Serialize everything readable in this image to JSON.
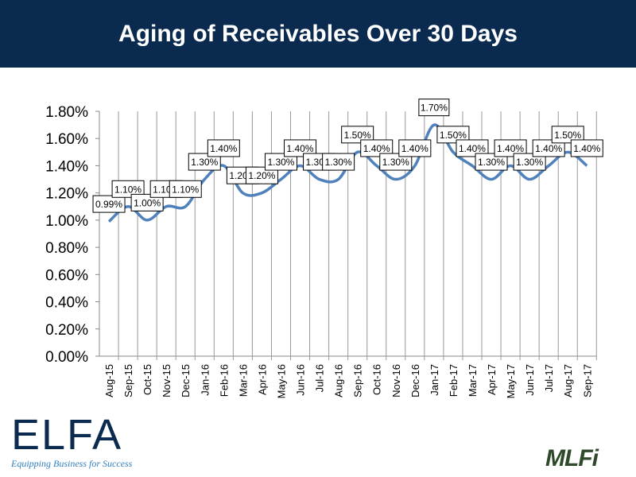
{
  "header": {
    "title": "Aging of Receivables Over 30 Days"
  },
  "logos": {
    "elfa": "ELFA",
    "elfa_tagline": "Equipping Business for Success",
    "mlfi": "MLFi"
  },
  "chart_data": {
    "type": "line",
    "title": "Aging of Receivables Over 30 Days",
    "xlabel": "",
    "ylabel": "",
    "ylim": [
      0,
      1.8
    ],
    "yticks": [
      "0.00%",
      "0.20%",
      "0.40%",
      "0.60%",
      "0.80%",
      "1.00%",
      "1.20%",
      "1.40%",
      "1.60%",
      "1.80%"
    ],
    "categories": [
      "Aug-15",
      "Sep-15",
      "Oct-15",
      "Nov-15",
      "Dec-15",
      "Jan-16",
      "Feb-16",
      "Mar-16",
      "Apr-16",
      "May-16",
      "Jun-16",
      "Jul-16",
      "Aug-16",
      "Sep-16",
      "Oct-16",
      "Nov-16",
      "Dec-16",
      "Jan-17",
      "Feb-17",
      "Mar-17",
      "Apr-17",
      "May-17",
      "Jun-17",
      "Jul-17",
      "Aug-17",
      "Sep-17"
    ],
    "values": [
      0.99,
      1.1,
      1.0,
      1.1,
      1.1,
      1.3,
      1.4,
      1.2,
      1.2,
      1.3,
      1.4,
      1.3,
      1.3,
      1.5,
      1.4,
      1.3,
      1.4,
      1.7,
      1.5,
      1.4,
      1.3,
      1.4,
      1.3,
      1.4,
      1.5,
      1.4
    ],
    "labels": [
      "0.99%",
      "1.10%",
      "1.00%",
      "1.10%",
      "1.10%",
      "1.30%",
      "1.40%",
      "1.20%",
      "1.20%",
      "1.30%",
      "1.40%",
      "1.30%",
      "1.30%",
      "1.50%",
      "1.40%",
      "1.30%",
      "1.40%",
      "1.70%",
      "1.50%",
      "1.40%",
      "1.30%",
      "1.40%",
      "1.30%",
      "1.40%",
      "1.50%",
      "1.40%"
    ],
    "line_color": "#4f81bd",
    "grid": "vertical",
    "legend": "none"
  }
}
